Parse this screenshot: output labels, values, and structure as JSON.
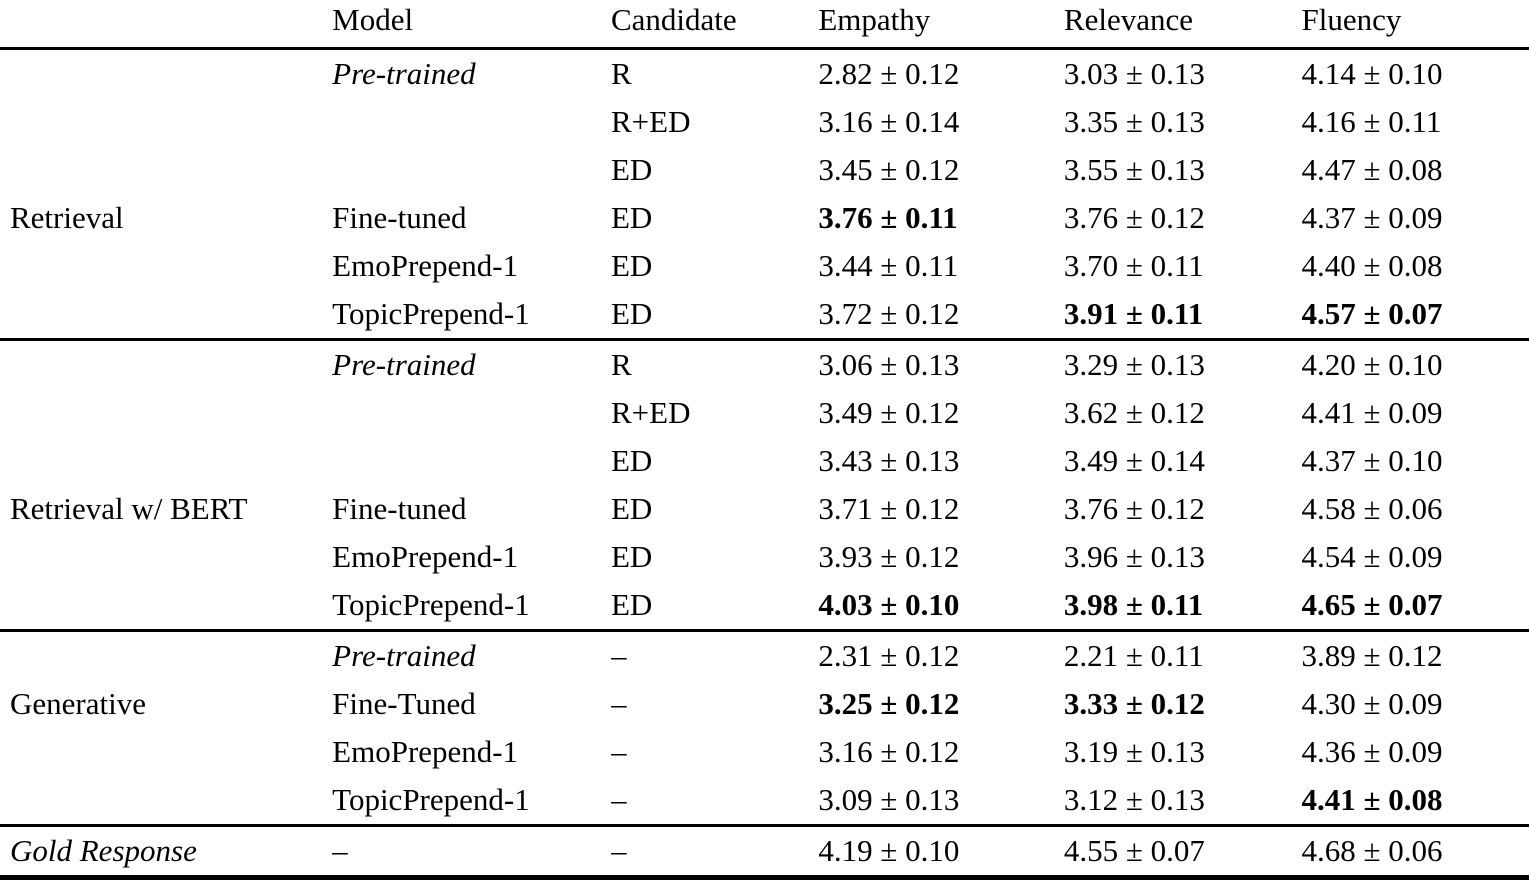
{
  "page": {
    "background": "#ffffff",
    "text_color": "#000000",
    "rule_color": "#000000"
  },
  "table": {
    "columns": {
      "group": "",
      "model": "Model",
      "candidate": "Candidate",
      "empathy": "Empathy",
      "relevance": "Relevance",
      "fluency": "Fluency"
    },
    "rows": [
      {
        "group": "",
        "model": "Pre-trained",
        "candidate": "R",
        "empathy": "2.82 ± 0.12",
        "relevance": "3.03 ± 0.13",
        "fluency": "4.14 ± 0.10"
      },
      {
        "group": "",
        "model": "",
        "candidate": "R+ED",
        "empathy": "3.16 ± 0.14",
        "relevance": "3.35 ± 0.13",
        "fluency": "4.16 ± 0.11"
      },
      {
        "group": "",
        "model": "",
        "candidate": "ED",
        "empathy": "3.45 ± 0.12",
        "relevance": "3.55 ± 0.13",
        "fluency": "4.47 ± 0.08"
      },
      {
        "group": "Retrieval",
        "model": "Fine-tuned",
        "candidate": "ED",
        "empathy": "3.76 ± 0.11",
        "relevance": "3.76 ± 0.12",
        "fluency": "4.37 ± 0.09"
      },
      {
        "group": "",
        "model": "EmoPrepend-1",
        "candidate": "ED",
        "empathy": "3.44 ± 0.11",
        "relevance": "3.70 ± 0.11",
        "fluency": "4.40 ± 0.08"
      },
      {
        "group": "",
        "model": "TopicPrepend-1",
        "candidate": "ED",
        "empathy": "3.72 ± 0.12",
        "relevance": "3.91 ± 0.11",
        "fluency": "4.57 ± 0.07"
      },
      {
        "group": "",
        "model": "Pre-trained",
        "candidate": "R",
        "empathy": "3.06 ± 0.13",
        "relevance": "3.29 ± 0.13",
        "fluency": "4.20 ± 0.10"
      },
      {
        "group": "",
        "model": "",
        "candidate": "R+ED",
        "empathy": "3.49 ± 0.12",
        "relevance": "3.62 ± 0.12",
        "fluency": "4.41 ± 0.09"
      },
      {
        "group": "",
        "model": "",
        "candidate": "ED",
        "empathy": "3.43 ± 0.13",
        "relevance": "3.49 ± 0.14",
        "fluency": "4.37 ± 0.10"
      },
      {
        "group": "Retrieval w/ BERT",
        "model": "Fine-tuned",
        "candidate": "ED",
        "empathy": "3.71 ± 0.12",
        "relevance": "3.76 ± 0.12",
        "fluency": "4.58 ± 0.06"
      },
      {
        "group": "",
        "model": "EmoPrepend-1",
        "candidate": "ED",
        "empathy": "3.93 ± 0.12",
        "relevance": "3.96 ± 0.13",
        "fluency": "4.54 ± 0.09"
      },
      {
        "group": "",
        "model": "TopicPrepend-1",
        "candidate": "ED",
        "empathy": "4.03 ± 0.10",
        "relevance": "3.98 ± 0.11",
        "fluency": "4.65 ± 0.07"
      },
      {
        "group": "",
        "model": "Pre-trained",
        "candidate": "–",
        "empathy": "2.31 ± 0.12",
        "relevance": "2.21 ± 0.11",
        "fluency": "3.89 ± 0.12"
      },
      {
        "group": "Generative",
        "model": "Fine-Tuned",
        "candidate": "–",
        "empathy": "3.25 ± 0.12",
        "relevance": "3.33 ± 0.12",
        "fluency": "4.30 ± 0.09"
      },
      {
        "group": "",
        "model": "EmoPrepend-1",
        "candidate": "–",
        "empathy": "3.16 ± 0.12",
        "relevance": "3.19 ± 0.13",
        "fluency": "4.36 ± 0.09"
      },
      {
        "group": "",
        "model": "TopicPrepend-1",
        "candidate": "–",
        "empathy": "3.09 ± 0.13",
        "relevance": "3.12 ± 0.13",
        "fluency": "4.41 ± 0.08"
      },
      {
        "group": "Gold Response",
        "model": "–",
        "candidate": "–",
        "empathy": "4.19 ± 0.10",
        "relevance": "4.55 ± 0.07",
        "fluency": "4.68 ± 0.06"
      }
    ]
  }
}
